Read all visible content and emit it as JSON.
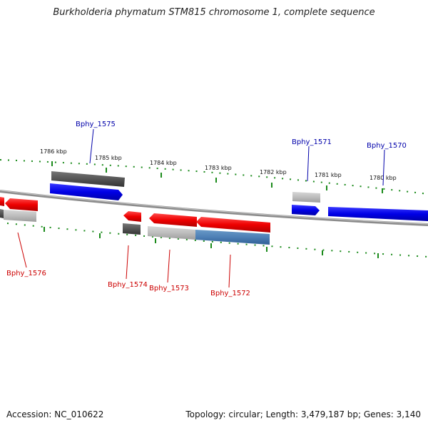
{
  "title": "Burkholderia phymatum STM815 chromosome 1, complete sequence",
  "footer": {
    "accession": "Accession: NC_010622",
    "summary": "Topology: circular; Length: 3,479,187 bp; Genes: 3,140"
  },
  "colors": {
    "forward_gene": "#0000e0",
    "reverse_gene": "#ee0000",
    "rna_or_other": "#555555",
    "backbone": "#808080",
    "tick": "#1a8a1a",
    "forward_label": "#0000aa",
    "reverse_label": "#cc0000"
  },
  "scale_labels": [
    "1786 kbp",
    "1785 kbp",
    "1784 kbp",
    "1783 kbp",
    "1782 kbp",
    "1781 kbp",
    "1780 kbp"
  ],
  "forward_genes": [
    "Bphy_1575",
    "Bphy_1571",
    "Bphy_1570"
  ],
  "reverse_genes": [
    "Bphy_1576",
    "Bphy_1574",
    "Bphy_1573",
    "Bphy_1572"
  ]
}
